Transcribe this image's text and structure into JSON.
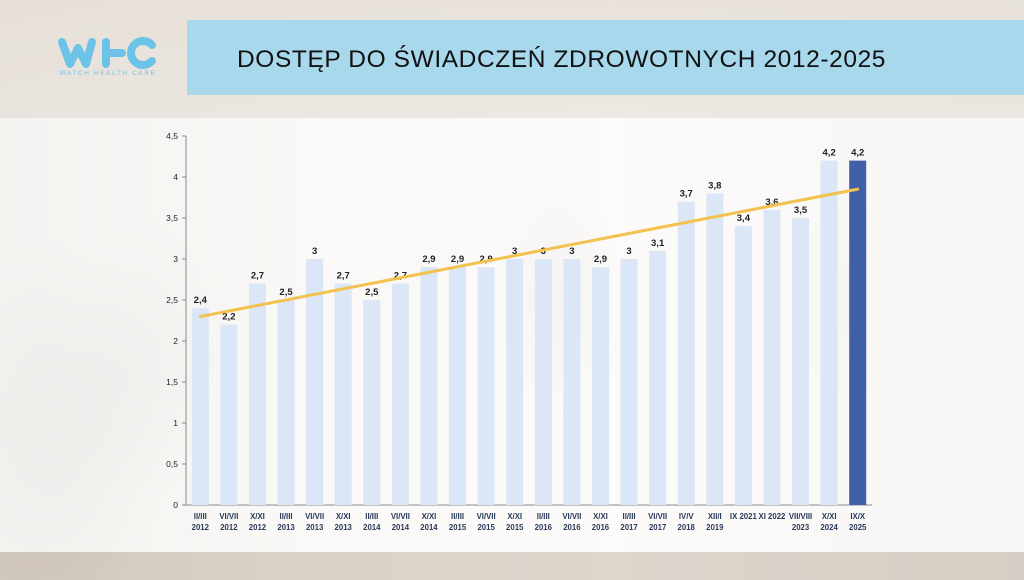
{
  "header": {
    "title": "DOSTĘP DO ŚWIADCZEŃ ZDROWOTNYCH 2012-2025",
    "logo_text": "WATCH HEALTH CARE",
    "logo_icon": "whc-logo-icon",
    "colors": {
      "title_bar": "#a8d8ec",
      "logo": "#6cc3e8"
    }
  },
  "chart_data": {
    "type": "bar",
    "categories": [
      [
        "II/III",
        "2012"
      ],
      [
        "VI/VII",
        "2012"
      ],
      [
        "X/XI",
        "2012"
      ],
      [
        "II/III",
        "2013"
      ],
      [
        "VI/VII",
        "2013"
      ],
      [
        "X/XI",
        "2013"
      ],
      [
        "II/III",
        "2014"
      ],
      [
        "VI/VII",
        "2014"
      ],
      [
        "X/XI",
        "2014"
      ],
      [
        "II/III",
        "2015"
      ],
      [
        "VI/VII",
        "2015"
      ],
      [
        "X/XI",
        "2015"
      ],
      [
        "II/III",
        "2016"
      ],
      [
        "VI/VII",
        "2016"
      ],
      [
        "X/XI",
        "2016"
      ],
      [
        "II/III",
        "2017"
      ],
      [
        "VI/VII",
        "2017"
      ],
      [
        "IV/V",
        "2018"
      ],
      [
        "XII/I",
        "2019"
      ],
      [
        "IX 2021"
      ],
      [
        "XI 2022"
      ],
      [
        "VII/VIII",
        "2023"
      ],
      [
        "X/XI",
        "2024"
      ],
      [
        "IX/X",
        "2025"
      ]
    ],
    "values": [
      2.4,
      2.2,
      2.7,
      2.5,
      3,
      2.7,
      2.5,
      2.7,
      2.9,
      2.9,
      2.9,
      3,
      3,
      3,
      2.9,
      3,
      3.1,
      3.7,
      3.8,
      3.4,
      3.6,
      3.5,
      4.2,
      4.2
    ],
    "labels": [
      "2,4",
      "2,2",
      "2,7",
      "2,5",
      "3",
      "2,7",
      "2,5",
      "2,7",
      "2,9",
      "2,9",
      "2,9",
      "3",
      "3",
      "3",
      "2,9",
      "3",
      "3,1",
      "3,7",
      "3,8",
      "3,4",
      "3,6",
      "3,5",
      "4,2",
      "4,2"
    ],
    "ylim": [
      0,
      4.5
    ],
    "yticks": [
      0,
      0.5,
      1,
      1.5,
      2,
      2.5,
      3,
      3.5,
      4,
      4.5
    ],
    "ytick_labels": [
      "0",
      "0,5",
      "1",
      "1,5",
      "2",
      "2,5",
      "3",
      "3,5",
      "4",
      "4,5"
    ],
    "trendline": {
      "type": "linear",
      "color": "#f2c14e"
    },
    "colors": {
      "bar": "#dbe6f6",
      "highlight_bar": "#3f5fa8",
      "highlight_index": 23
    },
    "grid": false,
    "legend": "none"
  }
}
